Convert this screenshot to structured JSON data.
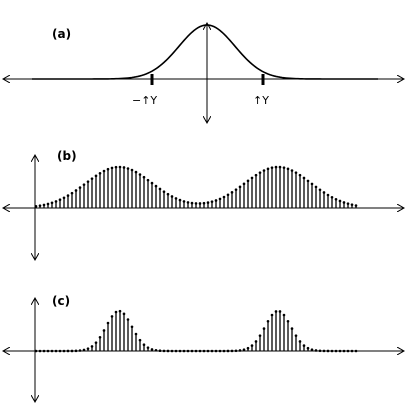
{
  "panels": [
    {
      "id": "a",
      "label": "(a)"
    },
    {
      "id": "b",
      "label": "(b)"
    },
    {
      "id": "c",
      "label": "(c)"
    }
  ],
  "panel_a": {
    "curve": "gaussian",
    "marker_labels": {
      "left": "−↑Y",
      "right": "↑Y"
    }
  },
  "panel_b": {
    "stems": "dense",
    "bumps": 2,
    "description": "sampled periodic gaussian, wide bumps"
  },
  "panel_c": {
    "stems": "dense",
    "bumps": 2,
    "description": "sampled periodic gaussian, narrow bumps"
  },
  "colors": {
    "ink": "#000000",
    "background": "#ffffff"
  }
}
